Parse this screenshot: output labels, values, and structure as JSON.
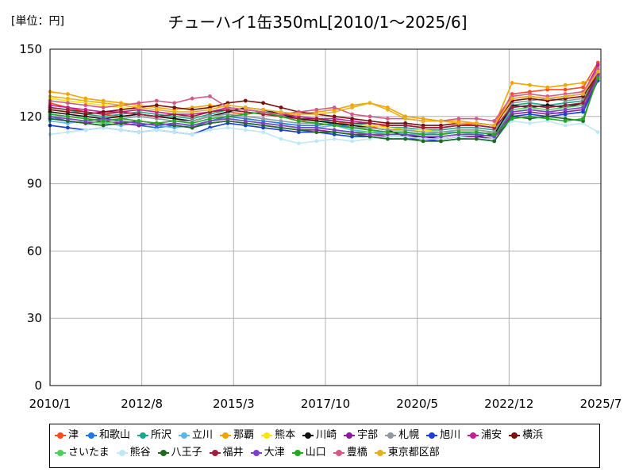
{
  "chart_data": {
    "type": "line",
    "title": "チューハイ1缶350mL[2010/1～2025/6]",
    "unit_label": "[単位：円]",
    "xlabel": "",
    "ylabel": "",
    "x_range": [
      "2010/1",
      "2025/7"
    ],
    "x_tick_labels": [
      "2010/1",
      "2012/8",
      "2015/3",
      "2017/10",
      "2020/5",
      "2022/12",
      "2025/7"
    ],
    "ylim": [
      0,
      150
    ],
    "y_tick_labels": [
      "0",
      "30",
      "60",
      "90",
      "120",
      "150"
    ],
    "grid": true,
    "legend_position": "bottom",
    "x": [
      "2010/1",
      "2010/7",
      "2011/1",
      "2011/7",
      "2012/1",
      "2012/7",
      "2013/1",
      "2013/7",
      "2014/1",
      "2014/7",
      "2015/1",
      "2015/7",
      "2016/1",
      "2016/7",
      "2017/1",
      "2017/7",
      "2018/1",
      "2018/7",
      "2019/1",
      "2019/7",
      "2020/1",
      "2020/7",
      "2021/1",
      "2021/7",
      "2022/1",
      "2022/7",
      "2023/1",
      "2023/7",
      "2024/1",
      "2024/7",
      "2025/1",
      "2025/6"
    ],
    "series": [
      {
        "name": "津",
        "color": "#ff4b1f",
        "values": [
          126,
          124,
          122,
          121,
          120,
          121,
          120,
          119,
          118,
          120,
          122,
          121,
          122,
          120,
          118,
          119,
          118,
          116,
          115,
          116,
          116,
          115,
          115,
          116,
          117,
          116,
          130,
          131,
          132,
          132,
          133,
          144
        ]
      },
      {
        "name": "和歌山",
        "color": "#1f77e0",
        "values": [
          120,
          118,
          117,
          116,
          117,
          116,
          115,
          116,
          115,
          118,
          120,
          119,
          118,
          117,
          116,
          116,
          117,
          115,
          114,
          113,
          113,
          112,
          112,
          113,
          113,
          112,
          124,
          125,
          124,
          125,
          126,
          140
        ]
      },
      {
        "name": "所沢",
        "color": "#1aa68a",
        "values": [
          124,
          123,
          121,
          120,
          121,
          122,
          121,
          120,
          119,
          121,
          123,
          122,
          121,
          120,
          119,
          118,
          118,
          117,
          116,
          115,
          115,
          114,
          114,
          115,
          115,
          114,
          125,
          126,
          125,
          126,
          127,
          139
        ]
      },
      {
        "name": "立川",
        "color": "#5bb8ea",
        "values": [
          118,
          117,
          118,
          117,
          116,
          117,
          116,
          115,
          116,
          118,
          119,
          118,
          117,
          116,
          115,
          115,
          116,
          114,
          113,
          113,
          112,
          112,
          113,
          113,
          112,
          113,
          122,
          123,
          122,
          121,
          122,
          141
        ]
      },
      {
        "name": "那覇",
        "color": "#f5a300",
        "values": [
          131,
          130,
          128,
          127,
          126,
          125,
          124,
          123,
          124,
          125,
          124,
          123,
          122,
          121,
          121,
          122,
          123,
          125,
          126,
          124,
          120,
          119,
          118,
          118,
          117,
          116,
          135,
          134,
          133,
          134,
          135,
          138
        ]
      },
      {
        "name": "熊本",
        "color": "#ffe600",
        "values": [
          128,
          127,
          126,
          125,
          124,
          123,
          122,
          121,
          120,
          122,
          123,
          122,
          121,
          120,
          119,
          118,
          117,
          116,
          116,
          115,
          114,
          114,
          113,
          114,
          114,
          113,
          127,
          128,
          127,
          128,
          129,
          140
        ]
      },
      {
        "name": "川崎",
        "color": "#111111",
        "values": [
          122,
          121,
          120,
          119,
          120,
          121,
          120,
          119,
          118,
          120,
          122,
          124,
          123,
          121,
          119,
          118,
          117,
          116,
          115,
          114,
          111,
          111,
          110,
          111,
          111,
          112,
          125,
          124,
          125,
          124,
          126,
          138
        ]
      },
      {
        "name": "宇部",
        "color": "#8a1a9e",
        "values": [
          119,
          118,
          117,
          118,
          117,
          116,
          117,
          116,
          115,
          117,
          118,
          117,
          116,
          115,
          114,
          114,
          113,
          112,
          112,
          111,
          111,
          110,
          110,
          111,
          111,
          110,
          121,
          122,
          121,
          122,
          123,
          137
        ]
      },
      {
        "name": "札幌",
        "color": "#8e99a3",
        "values": [
          121,
          120,
          119,
          118,
          119,
          120,
          119,
          118,
          118,
          120,
          121,
          120,
          119,
          118,
          117,
          117,
          116,
          115,
          115,
          114,
          114,
          113,
          113,
          114,
          114,
          113,
          126,
          127,
          128,
          127,
          128,
          142
        ]
      },
      {
        "name": "旭川",
        "color": "#1a3fd6",
        "values": [
          116,
          115,
          114,
          115,
          114,
          113,
          114,
          113,
          112,
          115,
          117,
          116,
          115,
          114,
          113,
          113,
          112,
          111,
          111,
          110,
          110,
          110,
          109,
          110,
          110,
          109,
          120,
          121,
          120,
          121,
          122,
          136
        ]
      },
      {
        "name": "浦安",
        "color": "#c21d9a",
        "values": [
          125,
          124,
          123,
          122,
          122,
          123,
          122,
          121,
          121,
          122,
          124,
          123,
          122,
          121,
          120,
          119,
          119,
          118,
          117,
          116,
          116,
          115,
          115,
          116,
          116,
          115,
          128,
          129,
          128,
          129,
          130,
          143
        ]
      },
      {
        "name": "横浜",
        "color": "#7a0f0f",
        "values": [
          123,
          122,
          121,
          122,
          123,
          124,
          125,
          124,
          123,
          124,
          126,
          127,
          126,
          124,
          122,
          121,
          120,
          119,
          118,
          117,
          117,
          116,
          116,
          117,
          117,
          116,
          127,
          128,
          127,
          128,
          129,
          139
        ]
      },
      {
        "name": "さいたま",
        "color": "#4dd05a",
        "values": [
          120,
          119,
          118,
          117,
          118,
          117,
          116,
          117,
          116,
          118,
          119,
          118,
          117,
          116,
          115,
          115,
          114,
          113,
          113,
          112,
          112,
          111,
          111,
          112,
          112,
          111,
          123,
          124,
          123,
          124,
          125,
          137
        ]
      },
      {
        "name": "熊谷",
        "color": "#bde8f5",
        "values": [
          112,
          113,
          114,
          115,
          114,
          113,
          114,
          113,
          112,
          114,
          115,
          114,
          113,
          110,
          108,
          109,
          110,
          109,
          110,
          111,
          111,
          110,
          110,
          111,
          110,
          110,
          118,
          117,
          118,
          116,
          117,
          113
        ]
      },
      {
        "name": "八王子",
        "color": "#1e6b1e",
        "values": [
          119,
          118,
          117,
          116,
          117,
          118,
          117,
          116,
          115,
          117,
          118,
          117,
          116,
          115,
          114,
          113,
          113,
          112,
          111,
          110,
          110,
          109,
          109,
          110,
          110,
          109,
          120,
          119,
          120,
          119,
          118,
          138
        ]
      },
      {
        "name": "福井",
        "color": "#a01e3c",
        "values": [
          124,
          123,
          122,
          121,
          122,
          121,
          120,
          121,
          120,
          122,
          123,
          122,
          121,
          120,
          119,
          119,
          118,
          117,
          117,
          116,
          116,
          115,
          115,
          116,
          116,
          115,
          124,
          125,
          124,
          125,
          126,
          139
        ]
      },
      {
        "name": "大津",
        "color": "#7e3fc9",
        "values": [
          120,
          119,
          118,
          119,
          118,
          117,
          116,
          117,
          116,
          118,
          119,
          118,
          117,
          116,
          115,
          115,
          114,
          113,
          112,
          112,
          112,
          111,
          111,
          112,
          112,
          111,
          122,
          123,
          122,
          123,
          124,
          138
        ]
      },
      {
        "name": "山口",
        "color": "#22a822",
        "values": [
          121,
          120,
          119,
          118,
          119,
          118,
          117,
          118,
          117,
          119,
          120,
          121,
          122,
          120,
          118,
          117,
          116,
          115,
          114,
          113,
          113,
          112,
          112,
          113,
          113,
          112,
          119,
          120,
          119,
          118,
          119,
          137
        ]
      },
      {
        "name": "豊橋",
        "color": "#d45a8a",
        "values": [
          127,
          126,
          125,
          124,
          125,
          126,
          127,
          126,
          128,
          129,
          124,
          123,
          122,
          121,
          122,
          123,
          124,
          121,
          120,
          119,
          119,
          118,
          118,
          119,
          119,
          118,
          129,
          130,
          129,
          130,
          131,
          141
        ]
      },
      {
        "name": "東京都区部",
        "color": "#e8b020",
        "values": [
          129,
          128,
          127,
          126,
          125,
          124,
          123,
          122,
          122,
          123,
          125,
          124,
          123,
          122,
          121,
          121,
          122,
          124,
          126,
          123,
          119,
          118,
          118,
          117,
          117,
          116,
          128,
          129,
          128,
          129,
          130,
          140
        ]
      }
    ]
  }
}
